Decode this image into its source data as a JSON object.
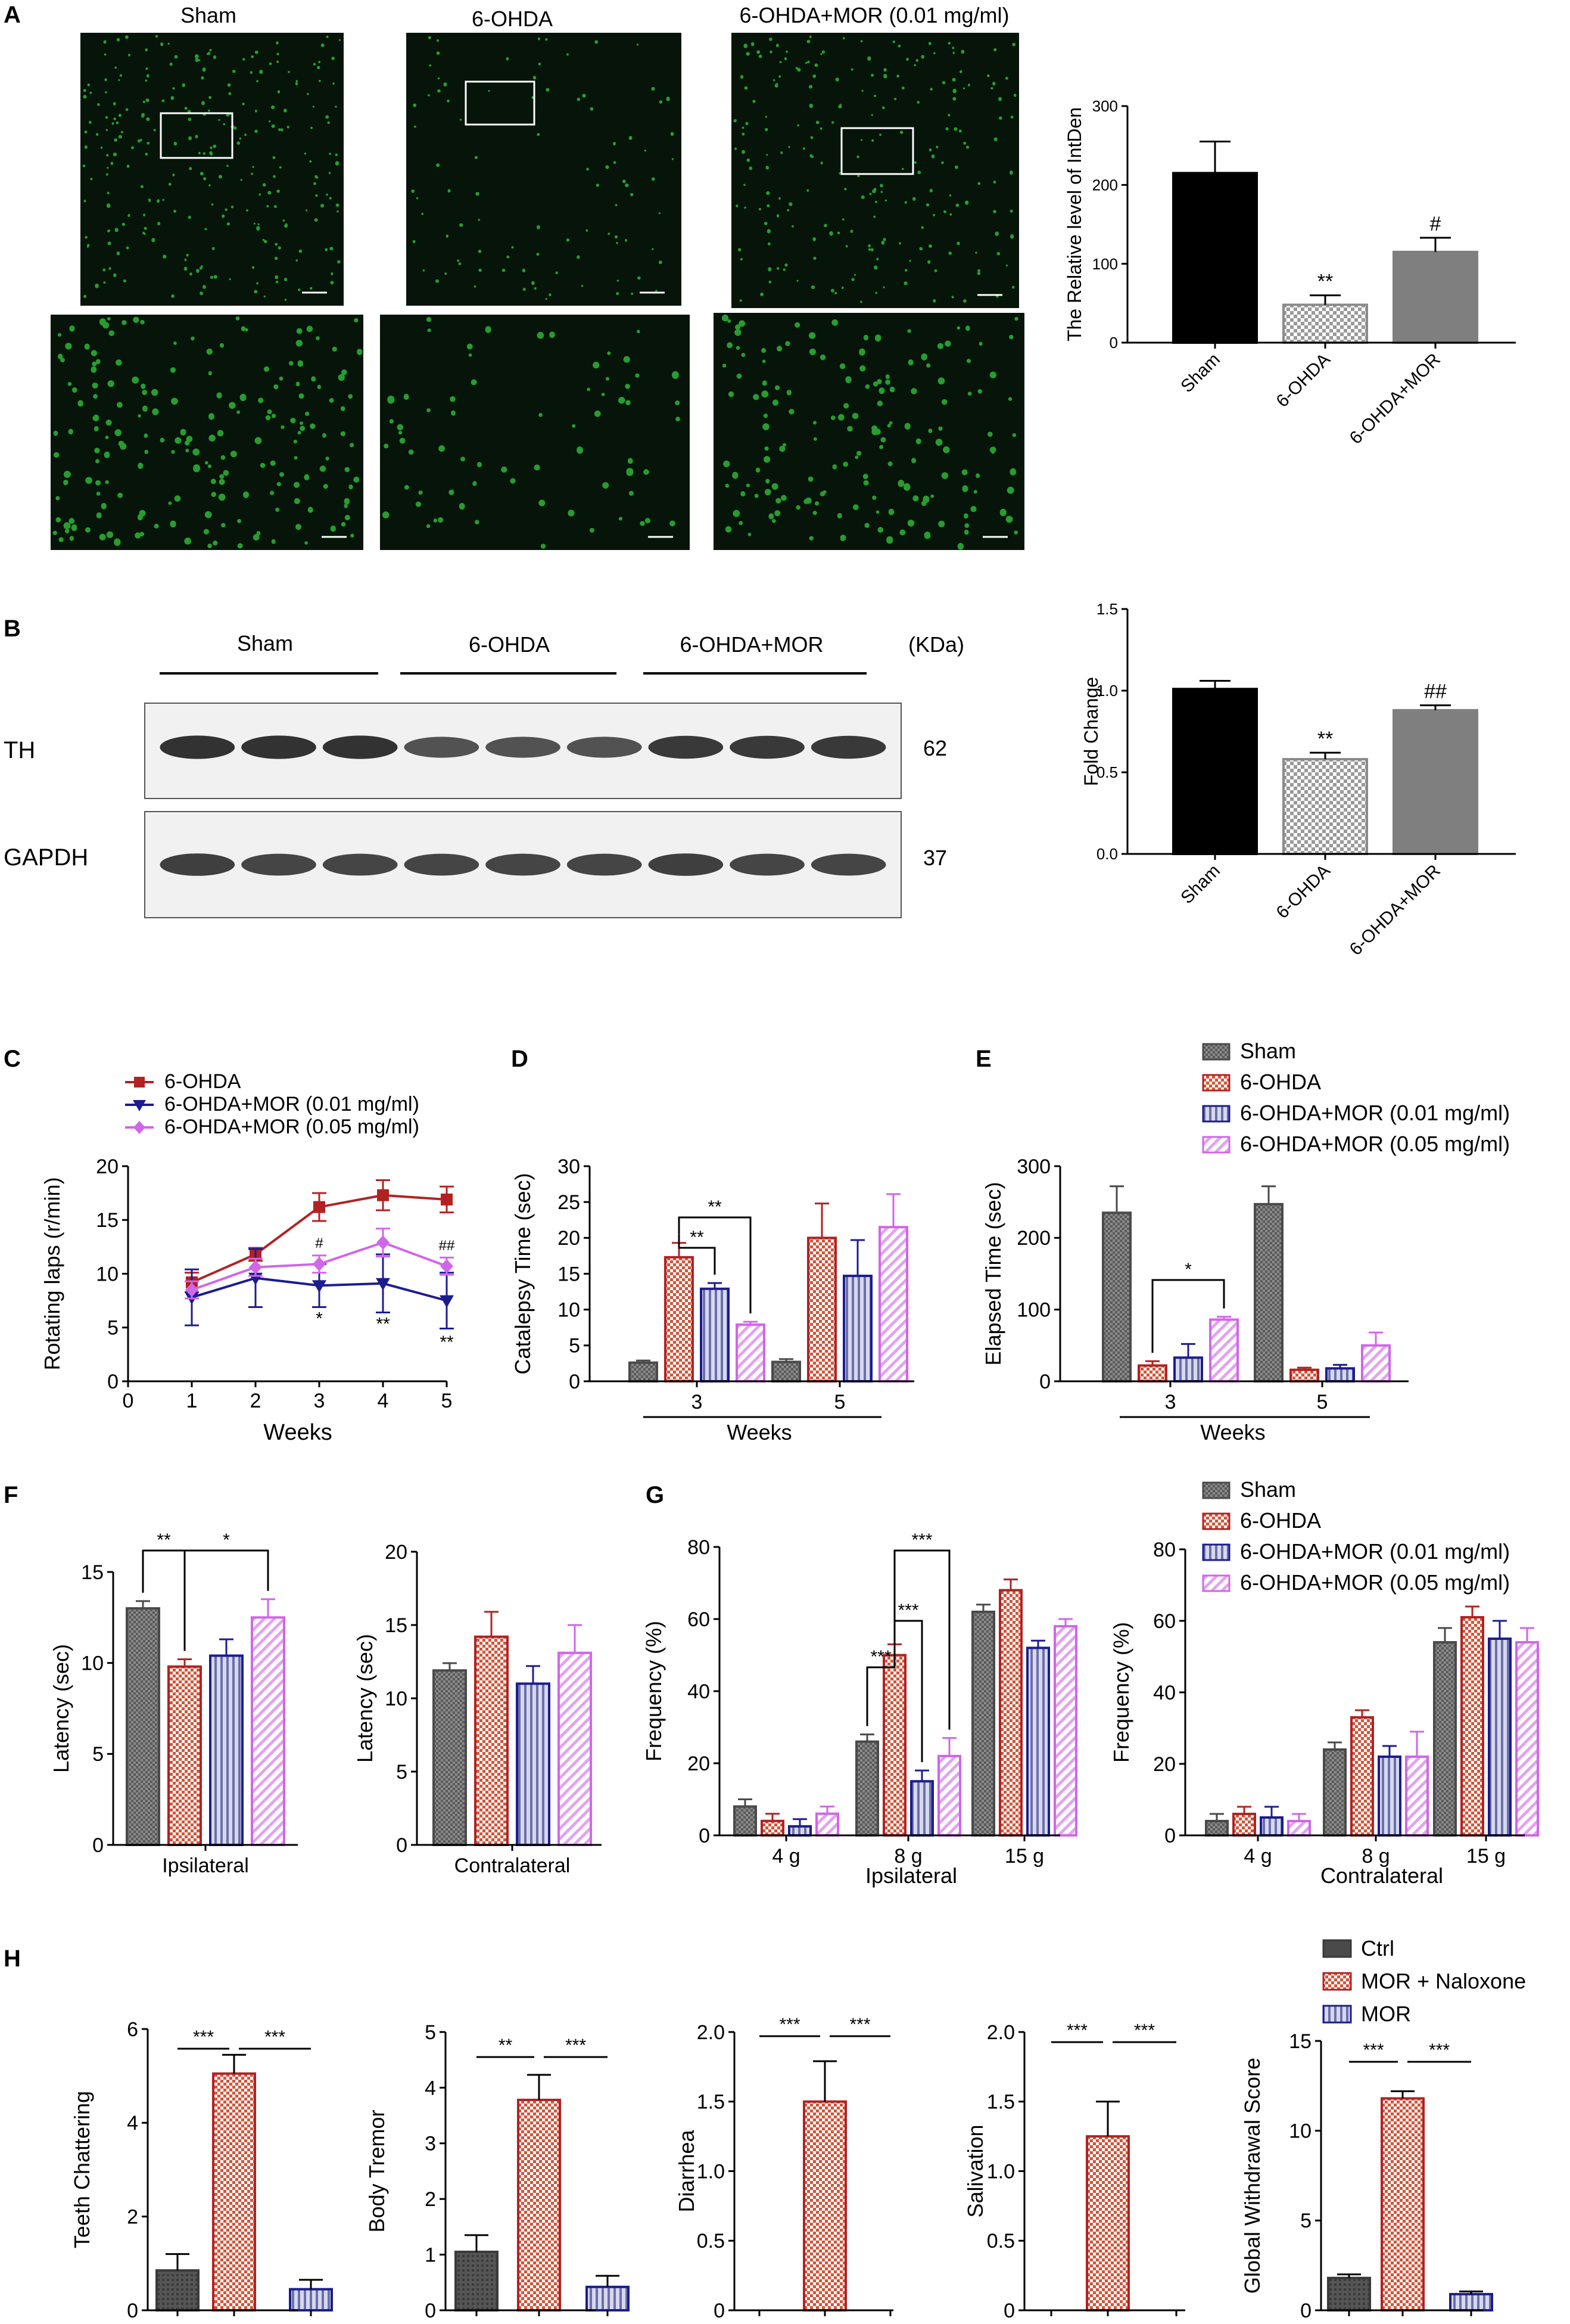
{
  "panel_letters": [
    "A",
    "B",
    "C",
    "D",
    "E",
    "F",
    "G",
    "H"
  ],
  "colors": {
    "black": "#000000",
    "gray": "#7f7f7f",
    "dark_gray": "#4a4a4a",
    "red": "#b22222",
    "navy": "#1c1c8f",
    "violet": "#d066e8",
    "fluor_dark": "#06140a",
    "fluor_green": "#2fbf3a",
    "blot_bg": "#f1f1f1",
    "band": "#222222"
  },
  "panel_a": {
    "titles": [
      "Sham",
      "6-OHDA",
      "6-OHDA+MOR (0.01 mg/ml)"
    ],
    "image_names": [
      "sham-overview-image",
      "6ohda-overview-image",
      "mor-overview-image",
      "sham-zoom-image",
      "6ohda-zoom-image",
      "mor-zoom-image"
    ],
    "green_density": [
      1.0,
      0.35,
      0.85
    ]
  },
  "panel_b_blot": {
    "group_labels": [
      "Sham",
      "6-OHDA",
      "6-OHDA+MOR"
    ],
    "unit_label": "(KDa)",
    "rows": [
      {
        "protein": "TH",
        "size": "62",
        "band_strength": [
          0.95,
          0.95,
          0.95,
          0.7,
          0.7,
          0.7,
          0.9,
          0.9,
          0.9
        ]
      },
      {
        "protein": "GAPDH",
        "size": "37",
        "band_strength": [
          0.85,
          0.8,
          0.8,
          0.8,
          0.8,
          0.8,
          0.85,
          0.8,
          0.8
        ]
      }
    ]
  },
  "chart_data": [
    {
      "id": "A-bar",
      "type": "bar",
      "categories": [
        "Sham",
        "6-OHDA",
        "6-OHDA+MOR"
      ],
      "values": [
        215,
        48,
        115
      ],
      "errors": [
        40,
        12,
        18
      ],
      "ylabel": "The Relative level of IntDen",
      "ylim": [
        0,
        300
      ],
      "yticks": [
        "0",
        "100",
        "200",
        "300"
      ],
      "annotations": [
        "",
        "**",
        "#"
      ],
      "bar_fill": [
        "black",
        "checker",
        "gray"
      ]
    },
    {
      "id": "B-bar",
      "type": "bar",
      "categories": [
        "Sham",
        "6-OHDA",
        "6-OHDA+MOR"
      ],
      "values": [
        1.01,
        0.58,
        0.88
      ],
      "errors": [
        0.05,
        0.04,
        0.03
      ],
      "ylabel": "Fold Change",
      "ylim": [
        0,
        1.5
      ],
      "yticks": [
        "0.0",
        "0.5",
        "1.0",
        "1.5"
      ],
      "annotations": [
        "",
        "**",
        "##"
      ],
      "bar_fill": [
        "black",
        "checker",
        "gray"
      ]
    },
    {
      "id": "C-line",
      "type": "line",
      "x": [
        1,
        2,
        3,
        4,
        5
      ],
      "xticks": [
        "0",
        "1",
        "2",
        "3",
        "4",
        "5"
      ],
      "xlabel": "Weeks",
      "ylabel": "Rotating laps (r/min)",
      "ylim": [
        0,
        20
      ],
      "yticks": [
        "0",
        "5",
        "10",
        "15",
        "20"
      ],
      "series": [
        {
          "name": "6-OHDA",
          "values": [
            9.2,
            11.8,
            16.2,
            17.3,
            16.9
          ],
          "errors": [
            0.9,
            0.6,
            1.3,
            1.4,
            1.2
          ],
          "marker": "square"
        },
        {
          "name": "6-OHDA+MOR (0.01 mg/ml)",
          "values": [
            7.8,
            9.6,
            8.9,
            9.1,
            7.5
          ],
          "errors": [
            2.6,
            2.7,
            2.0,
            2.7,
            2.6
          ],
          "marker": "triangle-down"
        },
        {
          "name": "6-OHDA+MOR (0.05 mg/ml)",
          "values": [
            8.5,
            10.6,
            10.9,
            12.9,
            10.7
          ],
          "errors": [
            0.8,
            0.8,
            0.8,
            1.3,
            0.8
          ],
          "marker": "diamond"
        }
      ],
      "annotations": [
        {
          "x": 3,
          "text": "#",
          "y": 12.4
        },
        {
          "x": 5,
          "text": "##",
          "y": 12.2
        },
        {
          "x": 3,
          "text": "*",
          "y": 5.3
        },
        {
          "x": 4,
          "text": "**",
          "y": 4.8
        },
        {
          "x": 5,
          "text": "**",
          "y": 3.1
        }
      ]
    },
    {
      "id": "D-bar",
      "type": "bar",
      "categories": [
        "3",
        "5"
      ],
      "xlabel": "Weeks",
      "ylabel": "Catalepsy Time (sec)",
      "ylim": [
        0,
        30
      ],
      "yticks": [
        "0",
        "5",
        "10",
        "15",
        "20",
        "25",
        "30"
      ],
      "series": [
        {
          "values": [
            2.6,
            2.7
          ],
          "errors": [
            0.3,
            0.4
          ]
        },
        {
          "values": [
            17.3,
            20.0
          ],
          "errors": [
            2.0,
            4.8
          ]
        },
        {
          "values": [
            12.9,
            14.7
          ],
          "errors": [
            0.8,
            5.0
          ]
        },
        {
          "values": [
            7.9,
            21.5
          ],
          "errors": [
            0.4,
            4.6
          ]
        }
      ],
      "brackets": [
        {
          "group": 0,
          "from": 1,
          "to": 2,
          "text": "**"
        },
        {
          "group": 0,
          "from": 1,
          "to": 3,
          "text": "**"
        }
      ]
    },
    {
      "id": "E-bar",
      "type": "bar",
      "categories": [
        "3",
        "5"
      ],
      "xlabel": "Weeks",
      "ylabel": "Elapsed Time (sec)",
      "ylim": [
        0,
        300
      ],
      "yticks": [
        "0",
        "100",
        "200",
        "300"
      ],
      "legend": [
        "Sham",
        "6-OHDA",
        "6-OHDA+MOR (0.01 mg/ml)",
        "6-OHDA+MOR (0.05 mg/ml)"
      ],
      "series": [
        {
          "name": "Sham",
          "values": [
            235,
            247
          ],
          "errors": [
            37,
            25
          ]
        },
        {
          "name": "6-OHDA",
          "values": [
            22,
            16
          ],
          "errors": [
            6,
            3
          ]
        },
        {
          "name": "6-OHDA+MOR (0.01 mg/ml)",
          "values": [
            33,
            18
          ],
          "errors": [
            19,
            5
          ]
        },
        {
          "name": "6-OHDA+MOR (0.05 mg/ml)",
          "values": [
            86,
            50
          ],
          "errors": [
            4,
            18
          ]
        }
      ],
      "brackets": [
        {
          "group": 0,
          "from": 1,
          "to": 3,
          "text": "*"
        }
      ]
    },
    {
      "id": "F-left",
      "type": "bar",
      "categories": [
        "Ipsilateral"
      ],
      "ylabel": "Latency (sec)",
      "ylim": [
        0,
        15
      ],
      "yticks": [
        "0",
        "5",
        "10",
        "15"
      ],
      "series": [
        {
          "values": [
            13.0
          ],
          "errors": [
            0.4
          ]
        },
        {
          "values": [
            9.8
          ],
          "errors": [
            0.4
          ]
        },
        {
          "values": [
            10.4
          ],
          "errors": [
            0.9
          ]
        },
        {
          "values": [
            12.5
          ],
          "errors": [
            1.0
          ]
        }
      ],
      "brackets": [
        {
          "group": 0,
          "from": 0,
          "to": 1,
          "text": "**"
        },
        {
          "group": 0,
          "from": 1,
          "to": 3,
          "text": "*"
        }
      ]
    },
    {
      "id": "F-right",
      "type": "bar",
      "categories": [
        "Contralateral"
      ],
      "ylabel": "Latency (sec)",
      "ylim": [
        0,
        20
      ],
      "yticks": [
        "0",
        "5",
        "10",
        "15",
        "20"
      ],
      "series": [
        {
          "values": [
            11.9
          ],
          "errors": [
            0.5
          ]
        },
        {
          "values": [
            14.2
          ],
          "errors": [
            1.7
          ]
        },
        {
          "values": [
            11.0
          ],
          "errors": [
            1.2
          ]
        },
        {
          "values": [
            13.1
          ],
          "errors": [
            1.9
          ]
        }
      ],
      "brackets": []
    },
    {
      "id": "G-left",
      "type": "bar",
      "categories": [
        "4 g",
        "8 g",
        "15 g"
      ],
      "xlabel": "Ipsilateral",
      "ylabel": "Frequency (%)",
      "ylim": [
        0,
        80
      ],
      "yticks": [
        "0",
        "20",
        "40",
        "60",
        "80"
      ],
      "series": [
        {
          "values": [
            8,
            26,
            62
          ],
          "errors": [
            2,
            2,
            2
          ]
        },
        {
          "values": [
            4,
            50,
            68
          ],
          "errors": [
            2,
            3,
            3
          ]
        },
        {
          "values": [
            2.5,
            15,
            52
          ],
          "errors": [
            2,
            3,
            2
          ]
        },
        {
          "values": [
            6,
            22,
            58
          ],
          "errors": [
            2,
            5,
            2
          ]
        }
      ],
      "brackets": [
        {
          "group": 1,
          "from": 0,
          "to": 1,
          "text": "***"
        },
        {
          "group": 1,
          "from": 1,
          "to": 2,
          "text": "***"
        },
        {
          "group": 1,
          "from": 1,
          "to": 3,
          "text": "***"
        }
      ]
    },
    {
      "id": "G-right",
      "type": "bar",
      "categories": [
        "4 g",
        "8 g",
        "15 g"
      ],
      "xlabel": "Contralateral",
      "ylabel": "Frequency (%)",
      "ylim": [
        0,
        80
      ],
      "yticks": [
        "0",
        "20",
        "40",
        "60",
        "80"
      ],
      "legend": [
        "Sham",
        "6-OHDA",
        "6-OHDA+MOR (0.01 mg/ml)",
        "6-OHDA+MOR (0.05 mg/ml)"
      ],
      "series": [
        {
          "name": "Sham",
          "values": [
            4,
            24,
            54
          ],
          "errors": [
            2,
            2,
            4
          ]
        },
        {
          "name": "6-OHDA",
          "values": [
            6,
            33,
            61
          ],
          "errors": [
            2,
            2,
            3
          ]
        },
        {
          "name": "6-OHDA+MOR (0.01 mg/ml)",
          "values": [
            5,
            22,
            55
          ],
          "errors": [
            3,
            3,
            5
          ]
        },
        {
          "name": "6-OHDA+MOR (0.05 mg/ml)",
          "values": [
            4,
            22,
            54
          ],
          "errors": [
            2,
            7,
            4
          ]
        }
      ],
      "brackets": []
    },
    {
      "id": "H-1",
      "type": "bar",
      "categories": [
        "Ctrl",
        "MOR + Naloxone",
        "MOR"
      ],
      "ylabel": "Teeth Chattering",
      "ylim": [
        0,
        6
      ],
      "yticks": [
        "0",
        "2",
        "4",
        "6"
      ],
      "values": [
        0.85,
        5.05,
        0.45
      ],
      "errors": [
        0.35,
        0.4,
        0.2
      ],
      "brackets": [
        {
          "from": 0,
          "to": 1,
          "text": "***"
        },
        {
          "from": 1,
          "to": 2,
          "text": "***"
        }
      ]
    },
    {
      "id": "H-2",
      "type": "bar",
      "categories": [
        "Ctrl",
        "MOR + Naloxone",
        "MOR"
      ],
      "ylabel": "Body Tremor",
      "ylim": [
        0,
        5
      ],
      "yticks": [
        "0",
        "1",
        "2",
        "3",
        "4",
        "5"
      ],
      "values": [
        1.05,
        3.78,
        0.42
      ],
      "errors": [
        0.3,
        0.45,
        0.2
      ],
      "brackets": [
        {
          "from": 0,
          "to": 1,
          "text": "**"
        },
        {
          "from": 1,
          "to": 2,
          "text": "***"
        }
      ]
    },
    {
      "id": "H-3",
      "type": "bar",
      "categories": [
        "Ctrl",
        "MOR + Naloxone",
        "MOR"
      ],
      "ylabel": "Diarrhea",
      "ylim": [
        0,
        2.0
      ],
      "yticks": [
        "0",
        "0.5",
        "1.0",
        "1.5",
        "2.0"
      ],
      "values": [
        0,
        1.5,
        0
      ],
      "errors": [
        0,
        0.29,
        0
      ],
      "brackets": [
        {
          "from": 0,
          "to": 1,
          "text": "***"
        },
        {
          "from": 1,
          "to": 2,
          "text": "***"
        }
      ]
    },
    {
      "id": "H-4",
      "type": "bar",
      "categories": [
        "Ctrl",
        "MOR + Naloxone",
        "MOR"
      ],
      "ylabel": "Salivation",
      "ylim": [
        0,
        2.0
      ],
      "yticks": [
        "0",
        "0.5",
        "1.0",
        "1.5",
        "2.0"
      ],
      "values": [
        0,
        1.25,
        0
      ],
      "errors": [
        0,
        0.25,
        0
      ],
      "brackets": [
        {
          "from": 0,
          "to": 1,
          "text": "***"
        },
        {
          "from": 1,
          "to": 2,
          "text": "***"
        }
      ]
    },
    {
      "id": "H-5",
      "type": "bar",
      "categories": [
        "Ctrl",
        "MOR + Naloxone",
        "MOR"
      ],
      "ylabel": "Global Withdrawal Score",
      "ylim": [
        0,
        15
      ],
      "yticks": [
        "0",
        "5",
        "10",
        "15"
      ],
      "values": [
        1.8,
        11.8,
        0.9
      ],
      "errors": [
        0.2,
        0.4,
        0.15
      ],
      "legend": [
        "Ctrl",
        "MOR + Naloxone",
        "MOR"
      ],
      "brackets": [
        {
          "from": 0,
          "to": 1,
          "text": "***"
        },
        {
          "from": 1,
          "to": 2,
          "text": "***"
        }
      ]
    }
  ]
}
